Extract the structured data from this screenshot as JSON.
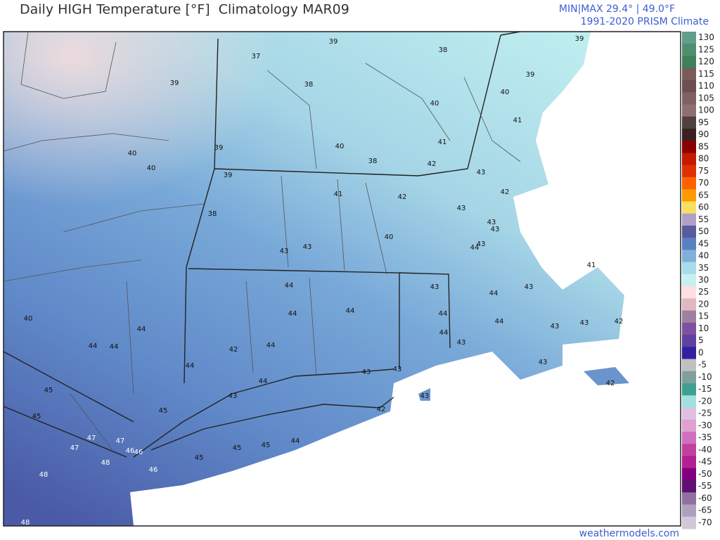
{
  "header": {
    "title": "Daily HIGH Temperature [°F]  Climatology MAR09",
    "minmax": "MIN|MAX 29.4° | 49.0°F",
    "source": "1991-2020 PRISM Climate"
  },
  "colorbar": {
    "ticks": [
      130,
      125,
      120,
      115,
      110,
      105,
      100,
      95,
      90,
      85,
      80,
      75,
      70,
      65,
      60,
      55,
      50,
      45,
      40,
      35,
      30,
      25,
      20,
      15,
      10,
      5,
      0,
      -5,
      -10,
      -15,
      -20,
      -25,
      -30,
      -35,
      -40,
      -45,
      -50,
      -55,
      -60,
      -65,
      -70
    ],
    "colors": [
      "#5f9e88",
      "#4f8f70",
      "#3f8058",
      "#7a5a5a",
      "#6e4e4e",
      "#806060",
      "#8e7070",
      "#504040",
      "#3a2020",
      "#8b0000",
      "#c41a00",
      "#e03000",
      "#ff6000",
      "#ff9a00",
      "#f7df60",
      "#b0a0c8",
      "#5a5aa0",
      "#5a80c0",
      "#80b0d8",
      "#a8dce8",
      "#c8f0f0",
      "#ffe0e0",
      "#e0b8c0",
      "#a080a0",
      "#8050a0",
      "#6040a0",
      "#3020a0",
      "#c0c0c0",
      "#80a0a0",
      "#40a090",
      "#a0e0e0",
      "#e0c0e0",
      "#e0a0d0",
      "#d070c0",
      "#c040a0",
      "#b02090",
      "#800080",
      "#601070",
      "#9070a0",
      "#b0a0c0",
      "#d0c8d8"
    ]
  },
  "map_labels": [
    37,
    39,
    38,
    39,
    39,
    38,
    39,
    40,
    40,
    41,
    40,
    40,
    39,
    40,
    38,
    41,
    42,
    43,
    39,
    41,
    42,
    42,
    43,
    38,
    43,
    43,
    40,
    43,
    44,
    43,
    43,
    41,
    43,
    44,
    44,
    43,
    40,
    44,
    44,
    44,
    44,
    44,
    43,
    43,
    42,
    44,
    44,
    44,
    42,
    43,
    44,
    44,
    43,
    43,
    43,
    44,
    45,
    43,
    42,
    43,
    42,
    45,
    45,
    47,
    47,
    47,
    46,
    46,
    44,
    45,
    45,
    48,
    45,
    46,
    48,
    48
  ],
  "footer": "weathermodels.com"
}
